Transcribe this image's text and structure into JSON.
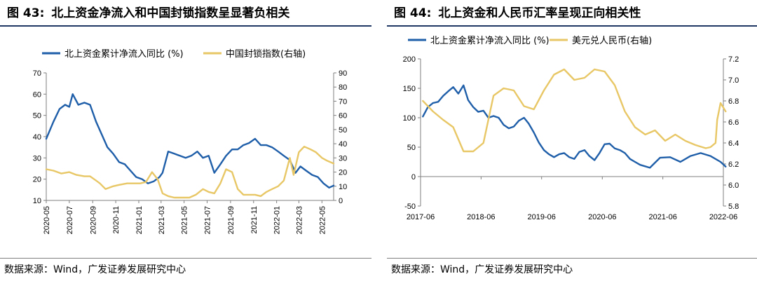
{
  "colors": {
    "blue": "#1f5ea8",
    "gold": "#e8c766",
    "title_rule": "#1f3864"
  },
  "left": {
    "fig_label": "图 43:",
    "fig_title": "北上资金净流入和中国封锁指数呈显著负相关",
    "source": "数据来源：Wind，广发证券发展研究中心"
  },
  "right": {
    "fig_label": "图 44:",
    "fig_title": "北上资金和人民币汇率呈现正向相关性",
    "source": "数据来源：Wind，广发证券发展研究中心"
  },
  "chart_data": [
    {
      "type": "line",
      "title": "",
      "x_ticks": [
        "2020-05",
        "2020-07",
        "2020-09",
        "2020-11",
        "2021-01",
        "2021-03",
        "2021-05",
        "2021-07",
        "2021-09",
        "2021-11",
        "2022-01",
        "2022-03",
        "2022-05"
      ],
      "xlim": [
        "2020-05",
        "2022-06"
      ],
      "ylim_left": [
        10,
        70
      ],
      "yticks_left": [
        10,
        20,
        30,
        40,
        50,
        60,
        70
      ],
      "ylim_right": [
        0,
        90
      ],
      "yticks_right": [
        0,
        10,
        20,
        30,
        40,
        50,
        60,
        70,
        80,
        90
      ],
      "grid": false,
      "legend_position": "top",
      "series": [
        {
          "name": "北上资金累计净流入同比 (%)",
          "axis": "left",
          "color": "#1f5ea8",
          "x": [
            "2020-05-01",
            "2020-05-20",
            "2020-06-05",
            "2020-06-20",
            "2020-07-01",
            "2020-07-10",
            "2020-07-25",
            "2020-08-10",
            "2020-08-25",
            "2020-09-10",
            "2020-09-25",
            "2020-10-10",
            "2020-10-25",
            "2020-11-10",
            "2020-11-25",
            "2020-12-10",
            "2020-12-25",
            "2021-01-10",
            "2021-01-25",
            "2021-02-10",
            "2021-02-25",
            "2021-03-05",
            "2021-03-20",
            "2021-04-05",
            "2021-04-20",
            "2021-05-05",
            "2021-05-20",
            "2021-06-05",
            "2021-06-20",
            "2021-07-05",
            "2021-07-20",
            "2021-08-05",
            "2021-08-20",
            "2021-09-05",
            "2021-09-20",
            "2021-10-05",
            "2021-10-20",
            "2021-11-05",
            "2021-11-20",
            "2021-12-05",
            "2021-12-20",
            "2022-01-05",
            "2022-01-20",
            "2022-02-05",
            "2022-02-20",
            "2022-03-05",
            "2022-03-20",
            "2022-04-05",
            "2022-04-20",
            "2022-05-05",
            "2022-05-20",
            "2022-06-01"
          ],
          "values": [
            39,
            47,
            53,
            55,
            54,
            60,
            55,
            56,
            55,
            47,
            41,
            35,
            32,
            28,
            27,
            24,
            21,
            20,
            18,
            19,
            21,
            23,
            33,
            32,
            31,
            30,
            31,
            33,
            30,
            31,
            23,
            27,
            31,
            34,
            34,
            36,
            37,
            39,
            36,
            36,
            35,
            33,
            31,
            29,
            23,
            26,
            24,
            22,
            21,
            18,
            16,
            17
          ]
        },
        {
          "name": "中国封锁指数(右轴)",
          "axis": "right",
          "color": "#e8c766",
          "x": [
            "2020-05-01",
            "2020-05-20",
            "2020-06-10",
            "2020-07-01",
            "2020-07-20",
            "2020-08-10",
            "2020-08-25",
            "2020-09-10",
            "2020-09-20",
            "2020-10-05",
            "2020-10-25",
            "2020-11-10",
            "2020-12-01",
            "2020-12-15",
            "2021-01-05",
            "2021-01-20",
            "2021-02-05",
            "2021-02-20",
            "2021-03-05",
            "2021-03-20",
            "2021-04-05",
            "2021-04-25",
            "2021-05-15",
            "2021-06-01",
            "2021-06-20",
            "2021-07-05",
            "2021-07-20",
            "2021-08-05",
            "2021-08-20",
            "2021-09-05",
            "2021-09-20",
            "2021-10-05",
            "2021-10-20",
            "2021-11-05",
            "2021-11-20",
            "2021-12-05",
            "2021-12-20",
            "2022-01-05",
            "2022-01-20",
            "2022-02-05",
            "2022-02-15",
            "2022-03-01",
            "2022-03-15",
            "2022-04-01",
            "2022-04-15",
            "2022-05-01",
            "2022-05-15",
            "2022-06-01"
          ],
          "values": [
            22,
            21,
            19,
            20,
            18,
            17,
            17,
            14,
            12,
            8,
            10,
            11,
            12,
            12,
            12,
            13,
            20,
            15,
            5,
            3,
            2,
            2,
            2,
            4,
            8,
            6,
            5,
            12,
            22,
            20,
            8,
            4,
            4,
            4,
            3,
            6,
            8,
            10,
            14,
            30,
            18,
            34,
            38,
            36,
            34,
            30,
            28,
            26
          ]
        }
      ]
    },
    {
      "type": "line",
      "title": "",
      "x_ticks": [
        "2017-06",
        "2018-06",
        "2019-06",
        "2020-06",
        "2021-06",
        "2022-06"
      ],
      "xlim": [
        "2017-06",
        "2022-06"
      ],
      "ylim_left": [
        -50,
        200
      ],
      "yticks_left": [
        -50,
        0,
        50,
        100,
        150,
        200
      ],
      "ylim_right": [
        5.8,
        7.2
      ],
      "yticks_right": [
        5.8,
        6.0,
        6.2,
        6.4,
        6.6,
        6.8,
        7.0,
        7.2
      ],
      "grid": false,
      "legend_position": "top",
      "series": [
        {
          "name": "北上资金累计净流入同比 (%)",
          "axis": "left",
          "color": "#1f5ea8",
          "x": [
            "2017-06-15",
            "2017-07-15",
            "2017-08-15",
            "2017-09-15",
            "2017-10-15",
            "2017-11-15",
            "2017-12-15",
            "2018-01-15",
            "2018-02-15",
            "2018-03-15",
            "2018-04-15",
            "2018-05-15",
            "2018-06-15",
            "2018-07-15",
            "2018-08-15",
            "2018-09-15",
            "2018-10-15",
            "2018-11-15",
            "2018-12-15",
            "2019-01-15",
            "2019-02-15",
            "2019-03-15",
            "2019-04-15",
            "2019-05-15",
            "2019-06-15",
            "2019-07-15",
            "2019-08-15",
            "2019-09-15",
            "2019-10-15",
            "2019-11-15",
            "2019-12-15",
            "2020-01-15",
            "2020-02-15",
            "2020-03-15",
            "2020-04-15",
            "2020-05-15",
            "2020-06-15",
            "2020-07-15",
            "2020-08-15",
            "2020-09-15",
            "2020-10-15",
            "2020-11-15",
            "2020-12-15",
            "2021-01-15",
            "2021-03-15",
            "2021-05-15",
            "2021-07-15",
            "2021-09-15",
            "2021-11-15",
            "2022-01-15",
            "2022-03-15",
            "2022-05-15",
            "2022-06-15"
          ],
          "values": [
            102,
            118,
            125,
            127,
            137,
            145,
            152,
            141,
            155,
            130,
            118,
            110,
            112,
            100,
            103,
            100,
            88,
            82,
            85,
            95,
            100,
            90,
            75,
            58,
            45,
            38,
            33,
            38,
            40,
            33,
            30,
            42,
            45,
            35,
            28,
            40,
            55,
            56,
            48,
            45,
            40,
            30,
            25,
            20,
            15,
            32,
            33,
            25,
            35,
            40,
            35,
            25,
            17
          ]
        },
        {
          "name": "美元兑人民币(右轴)",
          "axis": "right",
          "color": "#e8c766",
          "x": [
            "2017-06-15",
            "2017-08-15",
            "2017-10-15",
            "2017-12-15",
            "2018-02-15",
            "2018-04-15",
            "2018-06-15",
            "2018-08-15",
            "2018-10-15",
            "2018-12-15",
            "2019-02-15",
            "2019-04-15",
            "2019-06-15",
            "2019-08-15",
            "2019-10-15",
            "2019-12-15",
            "2020-02-15",
            "2020-04-15",
            "2020-06-15",
            "2020-08-15",
            "2020-10-15",
            "2020-12-15",
            "2021-02-15",
            "2021-04-15",
            "2021-06-15",
            "2021-08-15",
            "2021-10-15",
            "2021-12-15",
            "2022-02-15",
            "2022-03-15",
            "2022-04-15",
            "2022-04-25",
            "2022-05-15",
            "2022-06-15"
          ],
          "values": [
            6.8,
            6.7,
            6.62,
            6.55,
            6.32,
            6.32,
            6.4,
            6.85,
            6.92,
            6.9,
            6.75,
            6.72,
            6.9,
            7.05,
            7.1,
            7.0,
            7.02,
            7.1,
            7.08,
            6.95,
            6.7,
            6.55,
            6.48,
            6.52,
            6.42,
            6.48,
            6.42,
            6.38,
            6.35,
            6.36,
            6.4,
            6.62,
            6.78,
            6.7
          ]
        }
      ]
    }
  ]
}
